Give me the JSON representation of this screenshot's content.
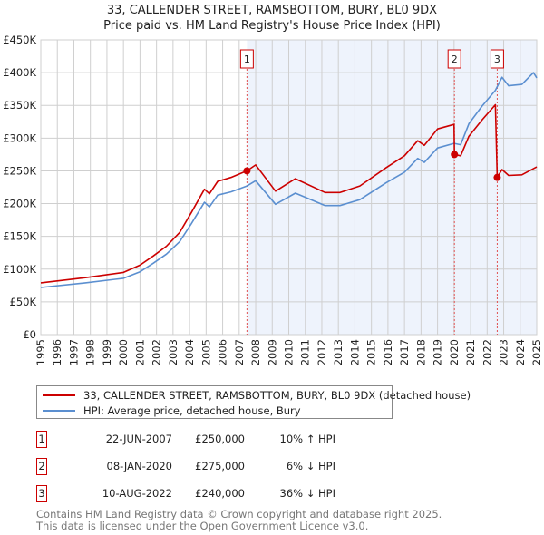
{
  "title_line1": "33, CALLENDER STREET, RAMSBOTTOM, BURY, BL0 9DX",
  "title_line2": "Price paid vs. HM Land Registry's House Price Index (HPI)",
  "chart_data": {
    "type": "line",
    "title": "33, CALLENDER STREET, RAMSBOTTOM, BURY, BL0 9DX — Price paid vs. HM Land Registry's House Price Index (HPI)",
    "xlim": [
      1995,
      2025
    ],
    "ylim": [
      0,
      450000
    ],
    "x_ticks": [
      "1995",
      "1996",
      "1997",
      "1998",
      "1999",
      "2000",
      "2001",
      "2002",
      "2003",
      "2004",
      "2005",
      "2006",
      "2007",
      "2008",
      "2009",
      "2010",
      "2011",
      "2012",
      "2013",
      "2014",
      "2015",
      "2016",
      "2017",
      "2018",
      "2019",
      "2020",
      "2021",
      "2022",
      "2023",
      "2024",
      "2025"
    ],
    "y_ticks": [
      {
        "value": 0,
        "label": "£0"
      },
      {
        "value": 50000,
        "label": "£50K"
      },
      {
        "value": 100000,
        "label": "£100K"
      },
      {
        "value": 150000,
        "label": "£150K"
      },
      {
        "value": 200000,
        "label": "£200K"
      },
      {
        "value": 250000,
        "label": "£250K"
      },
      {
        "value": 300000,
        "label": "£300K"
      },
      {
        "value": 350000,
        "label": "£350K"
      },
      {
        "value": 400000,
        "label": "£400K"
      },
      {
        "value": 450000,
        "label": "£450K"
      }
    ],
    "grid": true,
    "shaded_from": 2007.47,
    "series": [
      {
        "name": "33, CALLENDER STREET, RAMSBOTTOM, BURY, BL0 9DX (detached house)",
        "color": "#cc0000",
        "x": [
          1995.0,
          1997.7,
          2000.0,
          2001.0,
          2001.8,
          2002.6,
          2003.4,
          2004.1,
          2004.9,
          2005.2,
          2005.7,
          2006.5,
          2007.47,
          2008.0,
          2009.2,
          2010.4,
          2012.2,
          2013.1,
          2014.3,
          2015.9,
          2017.0,
          2017.8,
          2018.2,
          2019.0,
          2020.0,
          2020.02,
          2020.4,
          2020.9,
          2021.7,
          2022.5,
          2022.61,
          2022.9,
          2023.3,
          2024.1,
          2025.0
        ],
        "y": [
          79000,
          87000,
          95000,
          106000,
          120000,
          135000,
          156000,
          186000,
          222000,
          215000,
          234000,
          240000,
          250000,
          259000,
          219000,
          238000,
          217000,
          217000,
          227000,
          255000,
          273000,
          296000,
          289000,
          314000,
          321000,
          275000,
          273000,
          303000,
          328000,
          351000,
          240000,
          252000,
          243000,
          244000,
          256000
        ]
      },
      {
        "name": "HPI: Average price, detached house, Bury",
        "color": "#5b8fd0",
        "x": [
          1995.0,
          1997.7,
          2000.0,
          2001.0,
          2001.8,
          2002.6,
          2003.4,
          2004.1,
          2004.9,
          2005.2,
          2005.7,
          2006.5,
          2007.47,
          2008.0,
          2009.2,
          2010.4,
          2012.2,
          2013.1,
          2014.3,
          2015.9,
          2017.0,
          2017.8,
          2018.2,
          2019.0,
          2020.0,
          2020.4,
          2020.9,
          2021.7,
          2022.5,
          2022.9,
          2023.3,
          2024.1,
          2024.8,
          2025.0
        ],
        "y": [
          72000,
          79000,
          86000,
          96000,
          109000,
          123000,
          142000,
          169000,
          202000,
          195000,
          213000,
          218000,
          227000,
          235000,
          199000,
          216000,
          197000,
          197000,
          206000,
          232000,
          248000,
          269000,
          263000,
          285000,
          292000,
          290000,
          322000,
          349000,
          373000,
          393000,
          380000,
          382000,
          400000,
          392000
        ]
      }
    ],
    "sales": [
      {
        "label": "1",
        "x": 2007.47,
        "price": 250000
      },
      {
        "label": "2",
        "x": 2020.02,
        "price": 275000
      },
      {
        "label": "3",
        "x": 2022.61,
        "price": 240000
      }
    ]
  },
  "legend": {
    "property": "33, CALLENDER STREET, RAMSBOTTOM, BURY, BL0 9DX (detached house)",
    "hpi": "HPI: Average price, detached house, Bury",
    "property_color": "#cc0000",
    "hpi_color": "#5b8fd0"
  },
  "transactions": [
    {
      "num": "1",
      "date": "22-JUN-2007",
      "price": "£250,000",
      "diff": "10% ↑ HPI"
    },
    {
      "num": "2",
      "date": "08-JAN-2020",
      "price": "£275,000",
      "diff": "6% ↓ HPI"
    },
    {
      "num": "3",
      "date": "10-AUG-2022",
      "price": "£240,000",
      "diff": "36% ↓ HPI"
    }
  ],
  "footer": {
    "line1": "Contains HM Land Registry data © Crown copyright and database right 2025.",
    "line2": "This data is licensed under the Open Government Licence v3.0."
  }
}
